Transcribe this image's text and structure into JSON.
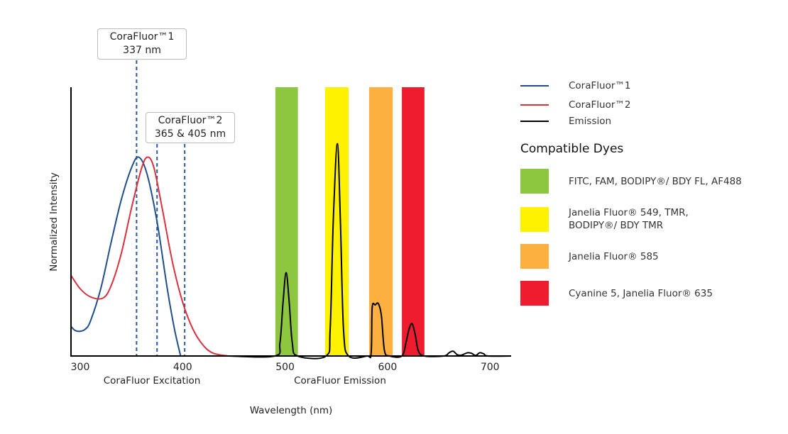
{
  "chart_data": {
    "type": "line",
    "title": "",
    "xlabel": "Wavelength (nm)",
    "ylabel": "Normalized Intensity",
    "xlim": [
      291,
      720
    ],
    "ylim": [
      0,
      1
    ],
    "x_ticks": [
      300,
      400,
      500,
      600,
      700
    ],
    "section_labels": [
      "CoraFluor Excitation",
      "CoraFluor Emission"
    ],
    "grid": false,
    "legend_position": "right",
    "series": [
      {
        "name": "CoraFluor™1",
        "color": "#1f4e8c",
        "points": [
          [
            291,
            0.11
          ],
          [
            295,
            0.095
          ],
          [
            300,
            0.092
          ],
          [
            305,
            0.1
          ],
          [
            310,
            0.13
          ],
          [
            320,
            0.25
          ],
          [
            330,
            0.42
          ],
          [
            340,
            0.58
          ],
          [
            350,
            0.7
          ],
          [
            357,
            0.74
          ],
          [
            365,
            0.68
          ],
          [
            375,
            0.5
          ],
          [
            385,
            0.25
          ],
          [
            392,
            0.1
          ],
          [
            398,
            0.0
          ]
        ]
      },
      {
        "name": "CoraFluor™2",
        "color": "#d9313d",
        "points": [
          [
            291,
            0.3
          ],
          [
            300,
            0.25
          ],
          [
            310,
            0.22
          ],
          [
            322,
            0.215
          ],
          [
            330,
            0.26
          ],
          [
            340,
            0.38
          ],
          [
            350,
            0.55
          ],
          [
            360,
            0.7
          ],
          [
            366,
            0.74
          ],
          [
            372,
            0.7
          ],
          [
            380,
            0.55
          ],
          [
            390,
            0.35
          ],
          [
            400,
            0.2
          ],
          [
            410,
            0.1
          ],
          [
            420,
            0.04
          ],
          [
            430,
            0.01
          ],
          [
            445,
            0.0
          ]
        ]
      },
      {
        "name": "Emission",
        "color": "#000000",
        "points": [
          [
            445,
            0
          ],
          [
            490,
            0
          ],
          [
            495,
            0.05
          ],
          [
            498,
            0.2
          ],
          [
            501,
            0.31
          ],
          [
            504,
            0.2
          ],
          [
            507,
            0.05
          ],
          [
            512,
            0
          ],
          [
            540,
            0
          ],
          [
            544,
            0.1
          ],
          [
            547,
            0.5
          ],
          [
            551,
            0.79
          ],
          [
            554,
            0.5
          ],
          [
            557,
            0.1
          ],
          [
            562,
            0
          ],
          [
            580,
            0
          ],
          [
            584,
            0.01
          ],
          [
            585,
            0.18
          ],
          [
            588,
            0.19
          ],
          [
            591,
            0.195
          ],
          [
            594,
            0.15
          ],
          [
            597,
            0.02
          ],
          [
            602,
            0
          ],
          [
            614,
            0
          ],
          [
            618,
            0.05
          ],
          [
            621,
            0.1
          ],
          [
            624,
            0.12
          ],
          [
            627,
            0.08
          ],
          [
            630,
            0.02
          ],
          [
            636,
            0
          ],
          [
            655,
            0
          ],
          [
            660,
            0.012
          ],
          [
            664,
            0.018
          ],
          [
            668,
            0.005
          ],
          [
            672,
            0.003
          ],
          [
            678,
            0.012
          ],
          [
            682,
            0.01
          ],
          [
            686,
            0.002
          ],
          [
            690,
            0.012
          ],
          [
            694,
            0.008
          ],
          [
            698,
            0
          ],
          [
            720,
            0
          ]
        ]
      }
    ],
    "excitation_lines_nm": [
      355,
      375,
      402
    ],
    "excitation_line_color": "#2a5a9a",
    "annotations": [
      {
        "line1": "CoraFluor™1",
        "line2": "337 nm"
      },
      {
        "line1": "CoraFluor™2",
        "line2": "365 & 405 nm"
      }
    ],
    "dye_bands": [
      {
        "range": [
          490.5,
          512.5
        ],
        "color": "#8dc63f",
        "label": "FITC, FAM, BODIPY®/ BDY FL, AF488"
      },
      {
        "range": [
          539,
          562
        ],
        "color": "#fff200",
        "label": "Janelia Fluor® 549, TMR, BODIPY®/ BDY TMR"
      },
      {
        "range": [
          582,
          605
        ],
        "color": "#fbb040",
        "label": "Janelia Fluor® 585"
      },
      {
        "range": [
          614,
          636
        ],
        "color": "#ed1c2e",
        "label": "Cyanine 5, Janelia Fluor® 635"
      }
    ],
    "dyes_title": "Compatible Dyes"
  }
}
